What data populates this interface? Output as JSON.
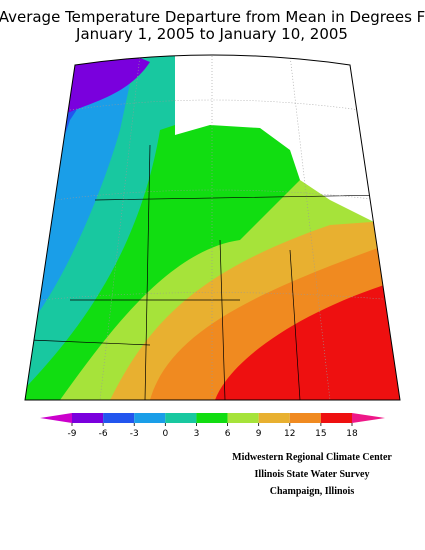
{
  "title": [
    "Average Temperature Departure from Mean in Degrees F",
    "January 1, 2005 to January 10, 2005"
  ],
  "colorbar": {
    "ticks": [
      -9,
      -6,
      -3,
      0,
      3,
      6,
      9,
      12,
      15,
      18
    ],
    "colors": [
      "#cc00cc",
      "#7a00dd",
      "#2255ee",
      "#1a9ee8",
      "#18c8a0",
      "#11dd11",
      "#a6e33a",
      "#e8b030",
      "#f08a20",
      "#ee1010",
      "#ee1888"
    ]
  },
  "credits": [
    "Midwestern Regional Climate Center",
    "Illinois State Water Survey",
    "Champaign, Illinois"
  ]
}
